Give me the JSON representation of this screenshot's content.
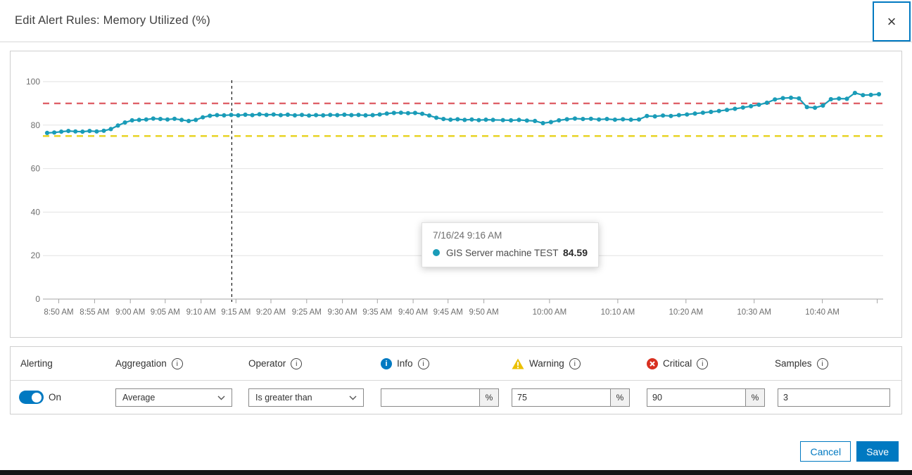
{
  "dialog": {
    "title": "Edit Alert Rules: Memory Utilized (%)"
  },
  "icons": {
    "close": "×",
    "info_outline": "i",
    "info_badge": "i"
  },
  "colors": {
    "accent": "#0079c1",
    "series": "#1a9cb8",
    "warning": "#ebc000",
    "critical": "#d83020"
  },
  "chart_data": {
    "type": "line",
    "title": "",
    "xlabel": "",
    "ylabel": "",
    "ylim": [
      0,
      100
    ],
    "y_ticks": [
      100,
      80,
      60,
      40,
      20,
      0
    ],
    "grid": "horizontal",
    "series": [
      {
        "name": "GIS Server machine TEST",
        "color": "#1a9cb8",
        "values": [
          76.4,
          76.6,
          77.0,
          77.3,
          77.1,
          77.0,
          77.3,
          77.1,
          77.4,
          78.2,
          79.8,
          81.2,
          82.2,
          82.4,
          82.6,
          83.0,
          82.8,
          82.6,
          82.9,
          82.4,
          81.9,
          82.4,
          83.6,
          84.3,
          84.6,
          84.5,
          84.7,
          84.5,
          84.8,
          84.6,
          85.0,
          84.7,
          84.9,
          84.6,
          84.8,
          84.5,
          84.7,
          84.4,
          84.6,
          84.5,
          84.7,
          84.6,
          84.8,
          84.6,
          84.7,
          84.5,
          84.6,
          84.9,
          85.3,
          85.6,
          85.7,
          85.5,
          85.6,
          85.2,
          84.4,
          83.4,
          82.8,
          82.5,
          82.7,
          82.4,
          82.6,
          82.3,
          82.5,
          82.4,
          82.3,
          82.2,
          82.4,
          82.1,
          81.9,
          80.9,
          81.4,
          82.2,
          82.7,
          83.0,
          82.8,
          82.9,
          82.6,
          82.8,
          82.5,
          82.7,
          82.5,
          82.6,
          84.2,
          84.0,
          84.4,
          84.2,
          84.6,
          84.9,
          85.3,
          85.7,
          86.1,
          86.5,
          87.0,
          87.5,
          88.1,
          88.7,
          89.4,
          90.3,
          91.8,
          92.4,
          92.6,
          92.3,
          88.3,
          88.0,
          89.0,
          91.9,
          92.2,
          92.1,
          94.8,
          93.8,
          93.9,
          94.2
        ]
      }
    ],
    "x_layout": {
      "break_index": 64,
      "spans": [
        [
          0,
          0.536
        ],
        [
          0.548,
          1.0
        ]
      ]
    },
    "x_ticks": [
      {
        "label": "8:50 AM",
        "f": 0.014
      },
      {
        "label": "8:55 AM",
        "f": 0.057
      },
      {
        "label": "9:00 AM",
        "f": 0.1
      },
      {
        "label": "9:05 AM",
        "f": 0.142
      },
      {
        "label": "9:10 AM",
        "f": 0.185
      },
      {
        "label": "9:15 AM",
        "f": 0.227
      },
      {
        "label": "9:20 AM",
        "f": 0.269
      },
      {
        "label": "9:25 AM",
        "f": 0.312
      },
      {
        "label": "9:30 AM",
        "f": 0.355
      },
      {
        "label": "9:35 AM",
        "f": 0.397
      },
      {
        "label": "9:40 AM",
        "f": 0.44
      },
      {
        "label": "9:45 AM",
        "f": 0.482
      },
      {
        "label": "9:50 AM",
        "f": 0.525
      },
      {
        "label": "10:00 AM",
        "f": 0.604
      },
      {
        "label": "10:10 AM",
        "f": 0.686
      },
      {
        "label": "10:20 AM",
        "f": 0.768
      },
      {
        "label": "10:30 AM",
        "f": 0.85
      },
      {
        "label": "10:40 AM",
        "f": 0.932
      },
      {
        "label": "",
        "f": 0.998
      }
    ],
    "thresholds": [
      {
        "name": "Critical",
        "value": 90,
        "color": "#df6168"
      },
      {
        "name": "Warning",
        "value": 75,
        "color": "#e7d21d"
      }
    ],
    "cursor": {
      "f": 0.222
    },
    "tooltip": {
      "datetime": "7/16/24 9:16 AM",
      "series_label": "GIS Server machine TEST",
      "value": "84.59"
    }
  },
  "form": {
    "headers": {
      "alerting": "Alerting",
      "aggregation": "Aggregation",
      "operator": "Operator",
      "info": "Info",
      "warning": "Warning",
      "critical": "Critical",
      "samples": "Samples"
    },
    "alerting": {
      "state_label": "On"
    },
    "aggregation": {
      "value": "Average"
    },
    "operator": {
      "value": "Is greater than"
    },
    "info": {
      "value": "",
      "unit": "%"
    },
    "warning": {
      "value": "75",
      "unit": "%"
    },
    "critical": {
      "value": "90",
      "unit": "%"
    },
    "samples": {
      "value": "3"
    }
  },
  "footer": {
    "cancel_label": "Cancel",
    "save_label": "Save"
  }
}
